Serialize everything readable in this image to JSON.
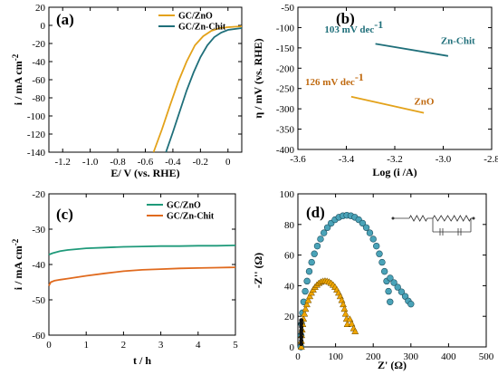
{
  "colors": {
    "gold": "#e3a21a",
    "teal": "#1f6f7a",
    "green": "#1f9a7a",
    "orange": "#e06a1e",
    "tri": "#f0a500",
    "circ": "#4aa3b8"
  },
  "chart_data": [
    {
      "type": "line",
      "panel_label": "(a)",
      "xlabel": "E/ V (vs. RHE)",
      "ylabel": "i / mA cm-2",
      "xlim": [
        -1.3,
        0.1
      ],
      "ylim": [
        -140,
        20
      ],
      "xticks": [
        -1.2,
        -1.0,
        -0.8,
        -0.6,
        -0.4,
        -0.2,
        0
      ],
      "xtick_labels": [
        "-1.2",
        "-1.0",
        "-0.8",
        "-0.6",
        "-0.4",
        "-0.2",
        "0"
      ],
      "yticks": [
        -140,
        -120,
        -100,
        -80,
        -60,
        -40,
        -20,
        0,
        20
      ],
      "ytick_labels": [
        "-140",
        "-120",
        "-100",
        "-80",
        "-60",
        "-40",
        "-20",
        "0",
        "20"
      ],
      "legend_position": "top-right",
      "series": [
        {
          "name": "GC/ZnO",
          "color": "#e3a21a",
          "x": [
            -0.54,
            -0.48,
            -0.42,
            -0.36,
            -0.3,
            -0.24,
            -0.18,
            -0.12,
            -0.06,
            0.0,
            0.1
          ],
          "y": [
            -140,
            -115,
            -88,
            -62,
            -40,
            -22,
            -12,
            -6,
            -3,
            -2,
            -1
          ]
        },
        {
          "name": "GC/Zn-Chit",
          "color": "#1f6f7a",
          "x": [
            -0.45,
            -0.4,
            -0.35,
            -0.3,
            -0.25,
            -0.2,
            -0.15,
            -0.1,
            -0.05,
            0.0,
            0.1
          ],
          "y": [
            -140,
            -118,
            -95,
            -72,
            -52,
            -35,
            -22,
            -13,
            -8,
            -5,
            -3
          ]
        }
      ]
    },
    {
      "type": "line",
      "panel_label": "(b)",
      "xlabel": "Log (i /A)",
      "ylabel": "η / mV (vs. RHE)",
      "xlim": [
        -3.6,
        -2.8
      ],
      "ylim": [
        -400,
        -50
      ],
      "xticks": [
        -3.6,
        -3.4,
        -3.2,
        -3.0,
        -2.8
      ],
      "xtick_labels": [
        "-3.6",
        "-3.4",
        "-3.2",
        "-3.0",
        "-2.8"
      ],
      "yticks": [
        -400,
        -350,
        -300,
        -250,
        -200,
        -150,
        -100,
        -50
      ],
      "ytick_labels": [
        "-400",
        "-350",
        "-300",
        "-250",
        "-200",
        "-150",
        "-100",
        "-50"
      ],
      "annotations": [
        {
          "text": "103 mV dec",
          "sup": "-1",
          "color": "#1f6f7a",
          "x": -3.49,
          "y": -112
        },
        {
          "text": "Zn-Chit",
          "color": "#1f6f7a",
          "x": -3.01,
          "y": -140
        },
        {
          "text": "126 mV dec",
          "sup": "-1",
          "color": "#c06a10",
          "x": -3.57,
          "y": -242
        },
        {
          "text": "ZnO",
          "color": "#c06a10",
          "x": -3.12,
          "y": -290
        }
      ],
      "series": [
        {
          "name": "Zn-Chit",
          "color": "#1f6f7a",
          "x": [
            -3.28,
            -2.98
          ],
          "y": [
            -140,
            -170
          ]
        },
        {
          "name": "ZnO",
          "color": "#e3a21a",
          "x": [
            -3.38,
            -3.08
          ],
          "y": [
            -270,
            -310
          ]
        }
      ]
    },
    {
      "type": "line",
      "panel_label": "(c)",
      "xlabel": "t / h",
      "ylabel": "i / mA cm-2",
      "xlim": [
        0,
        5
      ],
      "ylim": [
        -60,
        -20
      ],
      "xticks": [
        0,
        1,
        2,
        3,
        4,
        5
      ],
      "xtick_labels": [
        "0",
        "1",
        "2",
        "3",
        "4",
        "5"
      ],
      "yticks": [
        -60,
        -50,
        -40,
        -30,
        -20
      ],
      "ytick_labels": [
        "-60",
        "-50",
        "-40",
        "-30",
        "-20"
      ],
      "legend_position": "top-right",
      "series": [
        {
          "name": "GC/ZnO",
          "color": "#1f9a7a",
          "x": [
            0,
            0.1,
            0.3,
            0.5,
            1,
            1.5,
            2,
            2.5,
            3,
            3.5,
            4,
            4.5,
            5
          ],
          "y": [
            -37.2,
            -36.8,
            -36.2,
            -35.9,
            -35.4,
            -35.2,
            -35.0,
            -34.9,
            -34.8,
            -34.8,
            -34.7,
            -34.7,
            -34.6
          ]
        },
        {
          "name": "GC/Zn-Chit",
          "color": "#e06a1e",
          "x": [
            0,
            0.05,
            0.15,
            0.3,
            0.5,
            1,
            1.5,
            2,
            2.5,
            3,
            3.5,
            4,
            4.5,
            5
          ],
          "y": [
            -46.0,
            -45.0,
            -44.6,
            -44.3,
            -44.0,
            -43.2,
            -42.5,
            -41.9,
            -41.5,
            -41.3,
            -41.1,
            -41.0,
            -40.9,
            -40.8
          ]
        }
      ]
    },
    {
      "type": "scatter",
      "panel_label": "(d)",
      "xlabel": "Z' (Ω)",
      "ylabel": "-Z'' (Ω)",
      "xlim": [
        0,
        500
      ],
      "ylim": [
        0,
        100
      ],
      "xticks": [
        0,
        100,
        200,
        300,
        400,
        500
      ],
      "xtick_labels": [
        "0",
        "100",
        "200",
        "300",
        "400",
        "500"
      ],
      "yticks": [
        0,
        20,
        40,
        60,
        80,
        100
      ],
      "ytick_labels": [
        "0",
        "20",
        "40",
        "60",
        "80",
        "100"
      ],
      "series": [
        {
          "name": "semicircle-large",
          "marker": "circle",
          "color": "#4aa3b8",
          "center": [
            130,
            0
          ],
          "radius": [
            122,
            86
          ],
          "tail": [
            [
              245,
              45
            ],
            [
              255,
              42
            ],
            [
              265,
              39
            ],
            [
              275,
              36
            ],
            [
              285,
              33
            ],
            [
              293,
              30
            ],
            [
              300,
              28
            ]
          ]
        },
        {
          "name": "semicircle-small",
          "marker": "triangle",
          "color": "#f0a500",
          "center": [
            72,
            0
          ],
          "radius": [
            63,
            43
          ],
          "tail": [
            [
              138,
              18
            ],
            [
              143,
              15
            ],
            [
              148,
              12
            ],
            [
              152,
              10
            ]
          ]
        }
      ]
    }
  ]
}
